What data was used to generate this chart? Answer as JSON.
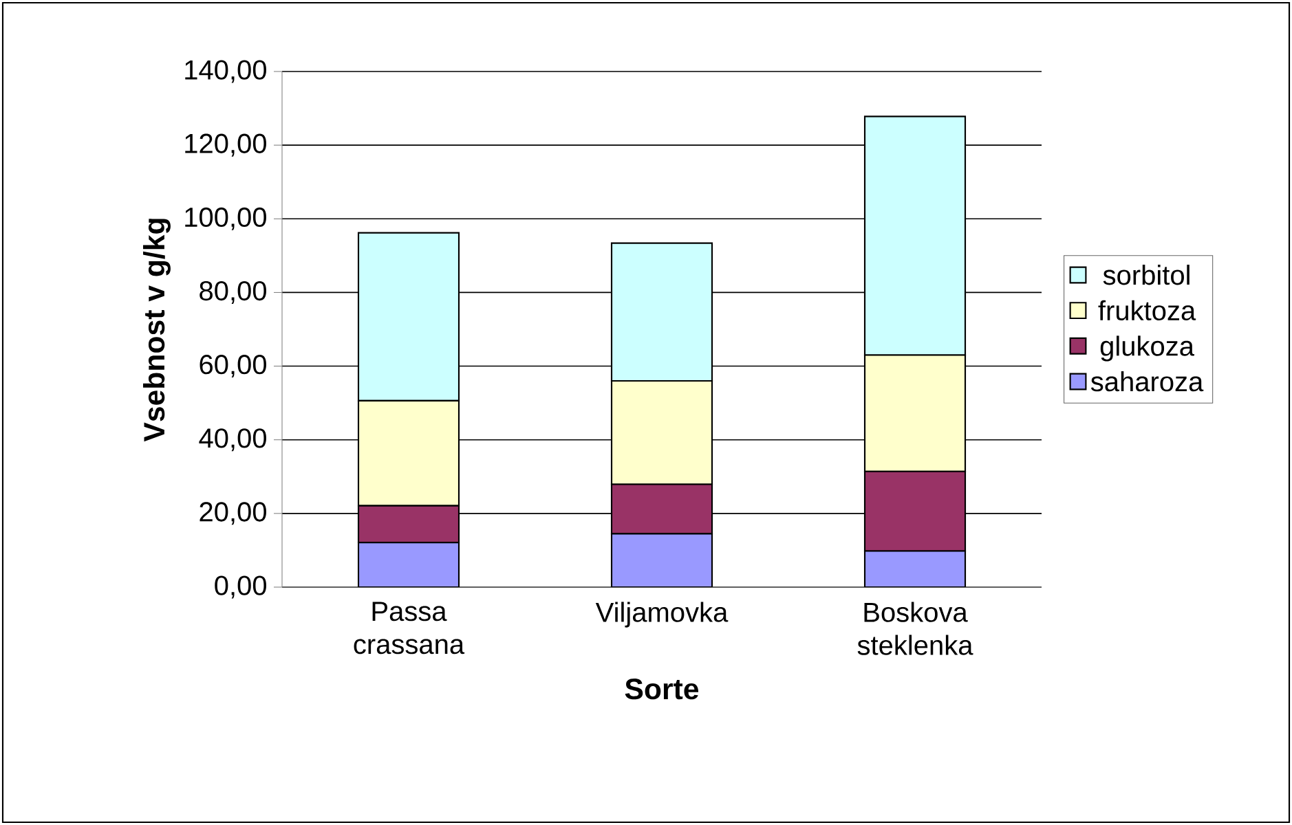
{
  "chart_data": {
    "type": "bar",
    "stacked": true,
    "xlabel": "Sorte",
    "ylabel": "Vsebnost v g/kg",
    "categories": [
      "Passa crassana",
      "Viljamovka",
      "Boskova steklenka"
    ],
    "series": [
      {
        "name": "saharoza",
        "color": "#9999ff",
        "values": [
          12.1,
          14.5,
          9.8
        ]
      },
      {
        "name": "glukoza",
        "color": "#993366",
        "values": [
          10.0,
          13.4,
          21.6
        ]
      },
      {
        "name": "fruktoza",
        "color": "#ffffcc",
        "values": [
          28.5,
          28.1,
          31.6
        ]
      },
      {
        "name": "sorbitol",
        "color": "#ccffff",
        "values": [
          45.6,
          37.4,
          64.8
        ]
      }
    ],
    "ylim": [
      0,
      140
    ],
    "yticks": [
      {
        "value": 0,
        "label": "0,00"
      },
      {
        "value": 20,
        "label": "20,00"
      },
      {
        "value": 40,
        "label": "40,00"
      },
      {
        "value": 60,
        "label": "60,00"
      },
      {
        "value": 80,
        "label": "80,00"
      },
      {
        "value": 100,
        "label": "100,00"
      },
      {
        "value": 120,
        "label": "120,00"
      },
      {
        "value": 140,
        "label": "140,00"
      }
    ],
    "grid": "y",
    "legend": "right"
  }
}
